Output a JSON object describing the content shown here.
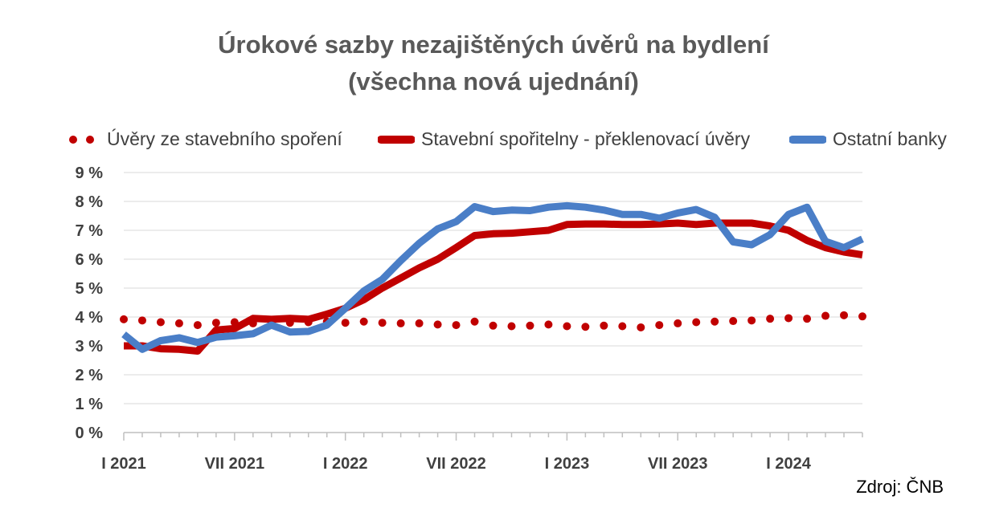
{
  "chart_data": {
    "type": "line",
    "title_line1": "Úrokové sazby nezajištěných úvěrů na bydlení",
    "title_line2": "(všechna nová ujednání)",
    "source": "Zdroj: ČNB",
    "ylim": [
      0,
      9
    ],
    "y_ticks": [
      "0 %",
      "1 %",
      "2 %",
      "3 %",
      "4 %",
      "5 %",
      "6 %",
      "7 %",
      "8 %",
      "9 %"
    ],
    "x_ticks": [
      {
        "index": 0,
        "label": "I 2021"
      },
      {
        "index": 6,
        "label": "VII 2021"
      },
      {
        "index": 12,
        "label": "I 2022"
      },
      {
        "index": 18,
        "label": "VII 2022"
      },
      {
        "index": 24,
        "label": "I 2023"
      },
      {
        "index": 30,
        "label": "VII 2023"
      },
      {
        "index": 36,
        "label": "I 2024"
      }
    ],
    "n_points": 41,
    "grid": true,
    "legend_position": "top",
    "series": [
      {
        "name": "Úvěry ze stavebního spoření",
        "style": "dotted",
        "color": "#C00000",
        "values": [
          3.92,
          3.88,
          3.82,
          3.78,
          3.72,
          3.8,
          3.82,
          3.78,
          3.78,
          3.8,
          3.82,
          3.84,
          3.8,
          3.84,
          3.8,
          3.78,
          3.78,
          3.74,
          3.72,
          3.84,
          3.7,
          3.68,
          3.7,
          3.74,
          3.68,
          3.66,
          3.7,
          3.68,
          3.64,
          3.72,
          3.78,
          3.82,
          3.84,
          3.86,
          3.88,
          3.94,
          3.96,
          3.94,
          4.04,
          4.06,
          4.02
        ]
      },
      {
        "name": "Stavební spořitelny - překlenovací úvěry",
        "style": "solid",
        "color": "#C00000",
        "values": [
          3.0,
          3.0,
          2.9,
          2.88,
          2.82,
          3.55,
          3.6,
          3.95,
          3.92,
          3.95,
          3.92,
          4.1,
          4.3,
          4.6,
          5.0,
          5.35,
          5.7,
          6.0,
          6.4,
          6.82,
          6.88,
          6.9,
          6.95,
          7.0,
          7.2,
          7.22,
          7.22,
          7.2,
          7.2,
          7.22,
          7.25,
          7.2,
          7.25,
          7.25,
          7.25,
          7.15,
          7.0,
          6.65,
          6.4,
          6.25,
          6.15
        ]
      },
      {
        "name": "Ostatní banky",
        "style": "solid",
        "color": "#4A7EC7",
        "values": [
          3.4,
          2.88,
          3.18,
          3.28,
          3.12,
          3.3,
          3.35,
          3.42,
          3.72,
          3.48,
          3.5,
          3.72,
          4.3,
          4.9,
          5.3,
          5.95,
          6.55,
          7.05,
          7.3,
          7.82,
          7.65,
          7.7,
          7.68,
          7.8,
          7.85,
          7.8,
          7.7,
          7.55,
          7.55,
          7.42,
          7.6,
          7.72,
          7.45,
          6.6,
          6.5,
          6.85,
          7.55,
          7.8,
          6.62,
          6.4,
          6.7
        ]
      }
    ]
  }
}
